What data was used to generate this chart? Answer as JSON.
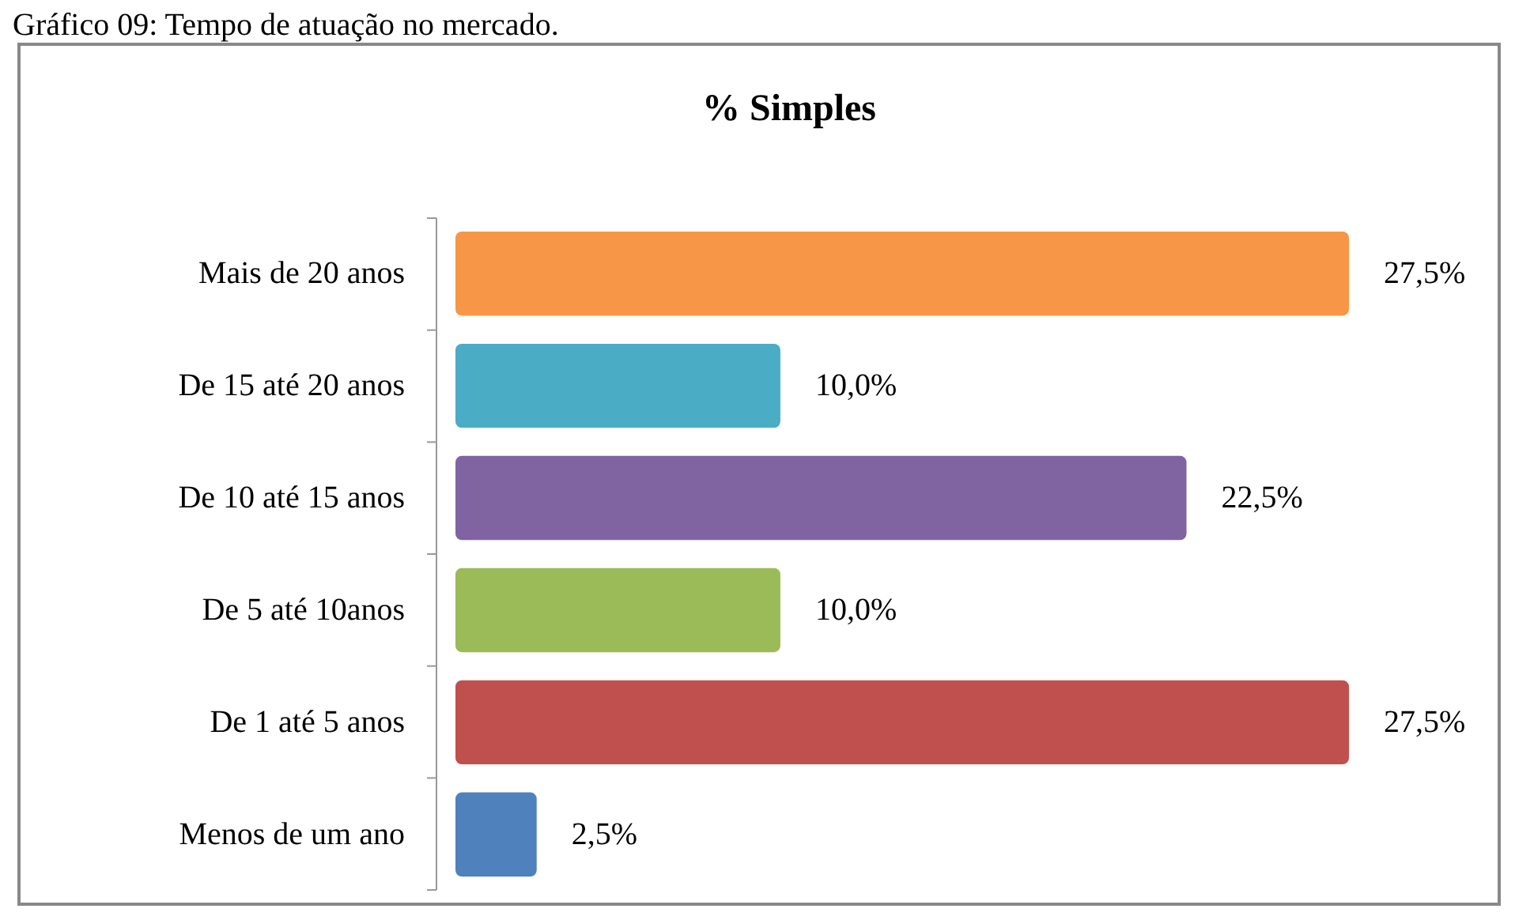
{
  "chart_data": {
    "type": "bar",
    "orientation": "horizontal",
    "title": "% Simples",
    "annotations": [
      "Gráfico 09: Tempo de atuação no mercado."
    ],
    "categories": [
      "Mais de 20 anos",
      "De 15 até 20 anos",
      "De 10 até 15 anos",
      "De 5 até 10anos",
      "De 1 até 5 anos",
      "Menos de um ano"
    ],
    "values": [
      27.5,
      10.0,
      22.5,
      10.0,
      27.5,
      2.5
    ],
    "colors": [
      "#f79646",
      "#4bacc6",
      "#8064a2",
      "#9bbb59",
      "#c0504d",
      "#4f81bd"
    ],
    "value_labels": [
      "27,5%",
      "10,0%",
      "22,5%",
      "10,0%",
      "27,5%",
      "2,5%"
    ]
  }
}
